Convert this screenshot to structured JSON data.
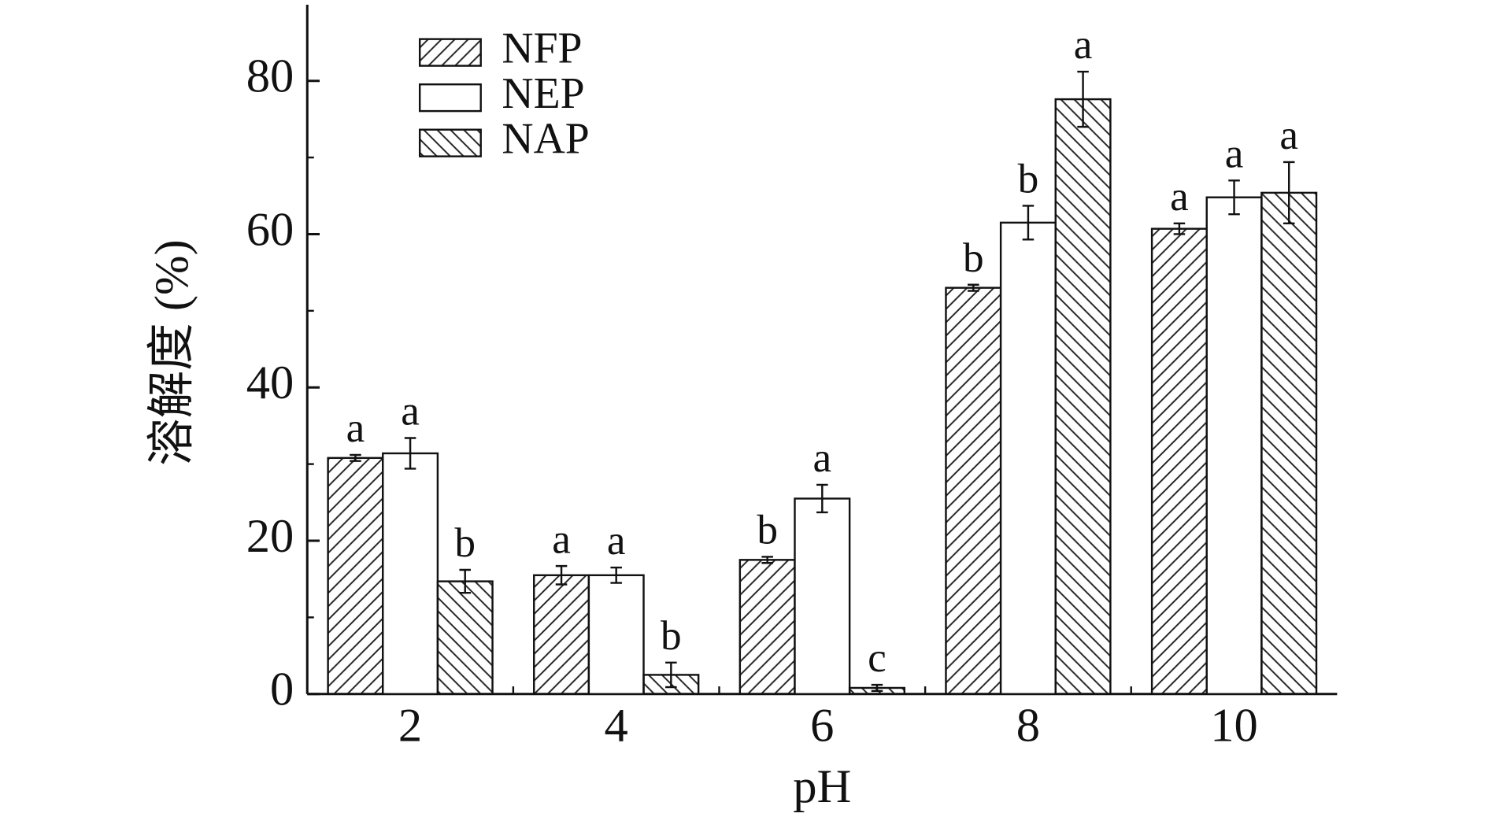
{
  "chart_data": {
    "type": "bar",
    "x_label": "pH",
    "y_label": "溶解度 (%)",
    "categories": [
      "2",
      "4",
      "6",
      "8",
      "10"
    ],
    "ylim": [
      0,
      90
    ],
    "yticks": [
      0,
      20,
      40,
      60,
      80
    ],
    "minor_yticks": [
      10,
      30,
      50,
      70
    ],
    "legend": "upper left",
    "series": [
      {
        "name": "NFP",
        "color": "#ffffff",
        "hatch": "forward",
        "values": [
          30.8,
          15.5,
          17.5,
          53.0,
          60.7
        ],
        "errors": [
          0.4,
          1.2,
          0.4,
          0.4,
          0.7
        ],
        "letters": [
          "a",
          "a",
          "b",
          "b",
          "a"
        ]
      },
      {
        "name": "NEP",
        "color": "#ffffff",
        "hatch": "none",
        "values": [
          31.4,
          15.5,
          25.5,
          61.5,
          64.8
        ],
        "errors": [
          2.0,
          1.0,
          1.8,
          2.2,
          2.2
        ],
        "letters": [
          "a",
          "a",
          "a",
          "b",
          "a"
        ]
      },
      {
        "name": "NAP",
        "color": "#ffffff",
        "hatch": "backward",
        "values": [
          14.7,
          2.5,
          0.8,
          77.6,
          65.4
        ],
        "errors": [
          1.5,
          1.6,
          0.4,
          3.6,
          4.0
        ],
        "letters": [
          "b",
          "b",
          "c",
          "a",
          "a"
        ]
      }
    ]
  }
}
